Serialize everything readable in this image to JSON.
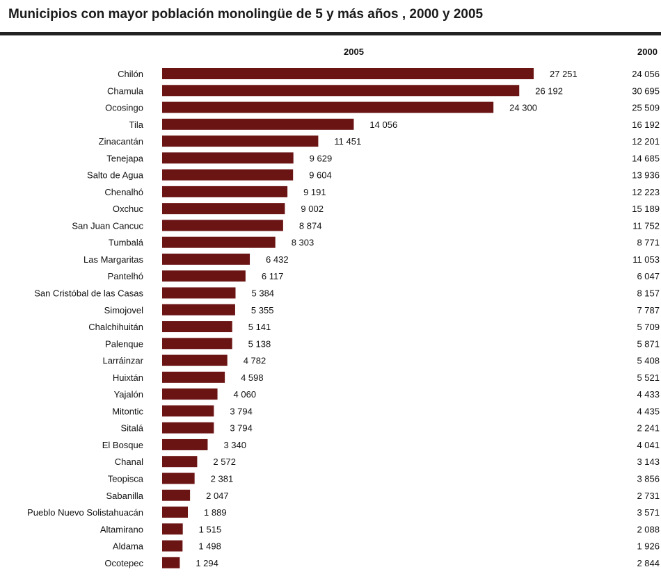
{
  "title": "Municipios con mayor población monolingüe de 5 y más años , 2000 y 2005",
  "header_2005": "2005",
  "header_2000": "2000",
  "chart_data": {
    "type": "bar",
    "orientation": "horizontal",
    "title": "Municipios con mayor población monolingüe de 5 y más años , 2000 y 2005",
    "bar_color": "#6b1414",
    "categories": [
      "Chilón",
      "Chamula",
      "Ocosingo",
      "Tila",
      "Zinacantán",
      "Tenejapa",
      "Salto de Agua",
      "Chenalhó",
      "Oxchuc",
      "San Juan Cancuc",
      "Tumbalá",
      "Las Margaritas",
      "Pantelhó",
      "San Cristóbal de las Casas",
      "Simojovel",
      "Chalchihuitán",
      "Palenque",
      "Larráinzar",
      "Huixtán",
      "Yajalón",
      "Mitontic",
      "Sitalá",
      "El Bosque",
      "Chanal",
      "Teopisca",
      "Sabanilla",
      "Pueblo Nuevo Solistahuacán",
      "Altamirano",
      "Aldama",
      "Ocotepec"
    ],
    "series": [
      {
        "name": "2005",
        "values": [
          27251,
          26192,
          24300,
          14056,
          11451,
          9629,
          9604,
          9191,
          9002,
          8874,
          8303,
          6432,
          6117,
          5384,
          5355,
          5141,
          5138,
          4782,
          4598,
          4060,
          3794,
          3794,
          3340,
          2572,
          2381,
          2047,
          1889,
          1515,
          1498,
          1294
        ],
        "labels": [
          "27 251",
          "26 192",
          "24 300",
          "14 056",
          "11 451",
          "9 629",
          "9 604",
          "9 191",
          "9 002",
          "8 874",
          "8 303",
          "6 432",
          "6 117",
          "5 384",
          "5 355",
          "5 141",
          "5 138",
          "4 782",
          "4 598",
          "4 060",
          "3 794",
          "3 794",
          "3 340",
          "2 572",
          "2 381",
          "2 047",
          "1 889",
          "1 515",
          "1 498",
          "1 294"
        ]
      },
      {
        "name": "2000",
        "values": [
          24056,
          30695,
          25509,
          16192,
          12201,
          14685,
          13936,
          12223,
          15189,
          11752,
          8771,
          11053,
          6047,
          8157,
          7787,
          5709,
          5871,
          5408,
          5521,
          4433,
          4435,
          2241,
          4041,
          3143,
          3856,
          2731,
          3571,
          2088,
          1926,
          2844
        ],
        "labels": [
          "24 056",
          "30 695",
          "25 509",
          "16 192",
          "12 201",
          "14 685",
          "13 936",
          "12 223",
          "15 189",
          "11 752",
          "8 771",
          "11 053",
          "6 047",
          "8 157",
          "7 787",
          "5 709",
          "5 871",
          "5 408",
          "5 521",
          "4 433",
          "4 435",
          "2 241",
          "4 041",
          "3 143",
          "3 856",
          "2 731",
          "3 571",
          "2 088",
          "1 926",
          "2 844"
        ]
      }
    ]
  }
}
